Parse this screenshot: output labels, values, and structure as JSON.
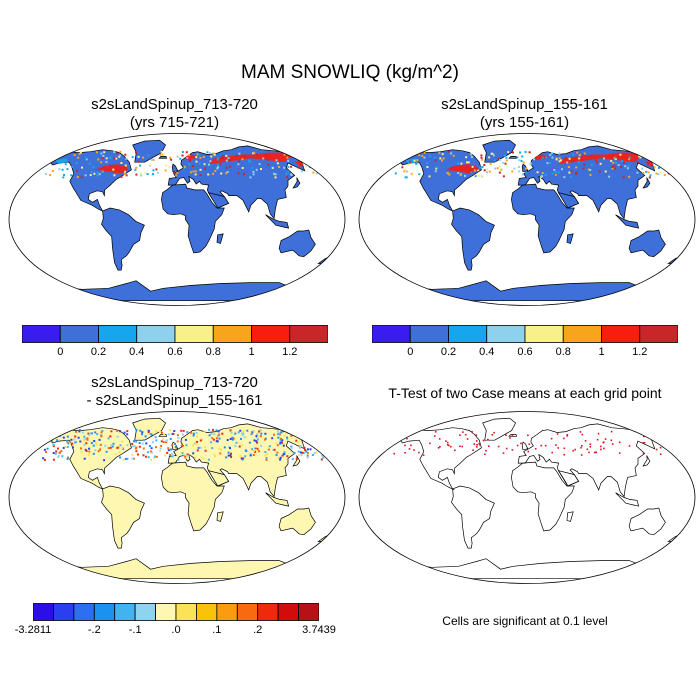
{
  "figure": {
    "title": "MAM SNOWLIQ (kg/m^2)"
  },
  "panels": [
    {
      "id": "case1",
      "title_line1": "s2sLandSpinup_713-720",
      "title_line2": "(yrs 715-721)"
    },
    {
      "id": "case2",
      "title_line1": "s2sLandSpinup_155-161",
      "title_line2": "(yrs 155-161)"
    },
    {
      "id": "difference",
      "title_line1": "s2sLandSpinup_713-720",
      "title_line2": "- s2sLandSpinup_155-161"
    },
    {
      "id": "ttest",
      "title_line1": "T-Test of two Case means at each grid point",
      "note": "Cells are significant at 0.1 level"
    }
  ],
  "colorbar_main": {
    "colors": [
      "#3a1cf0",
      "#3f6fd8",
      "#16a6ee",
      "#8ed1ec",
      "#f8f08a",
      "#f8a51b",
      "#f71d10",
      "#c9262a"
    ],
    "labels": [
      "0",
      "0.2",
      "0.4",
      "0.6",
      "0.8",
      "1",
      "1.2"
    ]
  },
  "colorbar_diff": {
    "colors": [
      "#2c0ee8",
      "#2a3ff0",
      "#2e6ef0",
      "#1c92f0",
      "#42b3f0",
      "#8ed3f0",
      "#fdf7b2",
      "#fbe258",
      "#fbc20a",
      "#f99c10",
      "#f86a10",
      "#f0280c",
      "#d20b0b",
      "#b71016"
    ],
    "labels": [
      "-3.2811",
      "-.2",
      "-.1",
      ".0",
      ".1",
      ".2",
      "3.7439"
    ]
  },
  "colors": {
    "ocean": "#ffffff",
    "land_main": "#3f6fd8",
    "land_diff": "#fdf7b2",
    "snow_high": "#f71d10",
    "snow_mid": "#f8f08a",
    "signif": "#e0141c"
  }
}
